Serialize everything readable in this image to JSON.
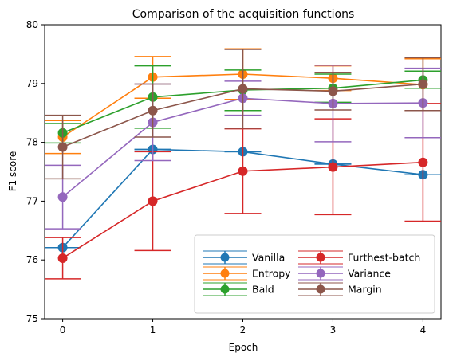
{
  "chart_data": {
    "type": "line",
    "title": "Comparison of the acquisition functions",
    "xlabel": "Epoch",
    "ylabel": "F1 score",
    "x": [
      0,
      1,
      2,
      3,
      4
    ],
    "xticks": [
      "0",
      "1",
      "2",
      "3",
      "4"
    ],
    "xlim": [
      -0.2,
      4.2
    ],
    "ylim": [
      75,
      80
    ],
    "yticks": [
      "75",
      "76",
      "77",
      "78",
      "79",
      "80"
    ],
    "grid": false,
    "legend": {
      "placement": "lower-right",
      "columns": 2
    },
    "error_bars": true,
    "series": [
      {
        "name": "Vanilla",
        "color": "#1f77b4",
        "values": [
          76.21,
          77.88,
          77.84,
          77.63,
          77.45
        ],
        "err_low": [
          76.21,
          77.88,
          77.84,
          77.63,
          77.45
        ],
        "err_high": [
          76.21,
          77.88,
          77.84,
          77.63,
          77.45
        ]
      },
      {
        "name": "Entropy",
        "color": "#ff7f0e",
        "values": [
          78.09,
          79.11,
          79.16,
          79.09,
          78.98
        ],
        "err_low": [
          77.81,
          78.75,
          78.73,
          78.88,
          78.54
        ],
        "err_high": [
          78.37,
          79.46,
          79.59,
          79.3,
          79.42
        ]
      },
      {
        "name": "Bald",
        "color": "#2ca02c",
        "values": [
          78.16,
          78.77,
          78.89,
          78.92,
          79.06
        ],
        "err_low": [
          77.99,
          78.24,
          78.54,
          78.68,
          78.92
        ],
        "err_high": [
          78.32,
          79.3,
          79.23,
          79.16,
          79.21
        ]
      },
      {
        "name": "Furthest-batch",
        "color": "#d62728",
        "values": [
          76.03,
          77.0,
          77.51,
          77.58,
          77.66
        ],
        "err_low": [
          75.68,
          76.16,
          76.79,
          76.77,
          76.66
        ],
        "err_high": [
          76.38,
          77.84,
          78.23,
          78.4,
          78.66
        ]
      },
      {
        "name": "Variance",
        "color": "#9467bd",
        "values": [
          77.07,
          78.34,
          78.75,
          78.66,
          78.67
        ],
        "err_low": [
          76.53,
          77.69,
          78.46,
          78.01,
          78.08
        ],
        "err_high": [
          77.61,
          78.99,
          79.04,
          79.31,
          79.26
        ]
      },
      {
        "name": "Margin",
        "color": "#8c564b",
        "values": [
          77.92,
          78.54,
          78.91,
          78.87,
          78.99
        ],
        "err_low": [
          77.38,
          78.09,
          78.24,
          78.55,
          78.54
        ],
        "err_high": [
          78.46,
          78.99,
          79.58,
          79.19,
          79.44
        ]
      }
    ]
  }
}
